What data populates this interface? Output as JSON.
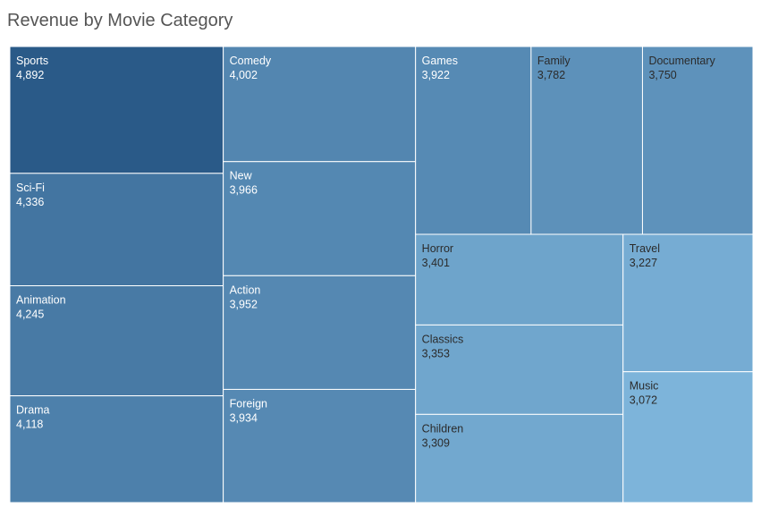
{
  "title": "Revenue by Movie Category",
  "chart_data": {
    "type": "treemap",
    "title": "Revenue by Movie Category",
    "color_scale": {
      "low": "#7db4da",
      "high": "#2a5a88"
    },
    "items": [
      {
        "name": "Sports",
        "label": "4,892",
        "value": 4892
      },
      {
        "name": "Sci-Fi",
        "label": "4,336",
        "value": 4336
      },
      {
        "name": "Animation",
        "label": "4,245",
        "value": 4245
      },
      {
        "name": "Drama",
        "label": "4,118",
        "value": 4118
      },
      {
        "name": "Comedy",
        "label": "4,002",
        "value": 4002
      },
      {
        "name": "New",
        "label": "3,966",
        "value": 3966
      },
      {
        "name": "Action",
        "label": "3,952",
        "value": 3952
      },
      {
        "name": "Foreign",
        "label": "3,934",
        "value": 3934
      },
      {
        "name": "Games",
        "label": "3,922",
        "value": 3922
      },
      {
        "name": "Family",
        "label": "3,782",
        "value": 3782
      },
      {
        "name": "Documentary",
        "label": "3,750",
        "value": 3750
      },
      {
        "name": "Horror",
        "label": "3,401",
        "value": 3401
      },
      {
        "name": "Classics",
        "label": "3,353",
        "value": 3353
      },
      {
        "name": "Children",
        "label": "3,309",
        "value": 3309
      },
      {
        "name": "Travel",
        "label": "3,227",
        "value": 3227
      },
      {
        "name": "Music",
        "label": "3,072",
        "value": 3072
      }
    ]
  }
}
